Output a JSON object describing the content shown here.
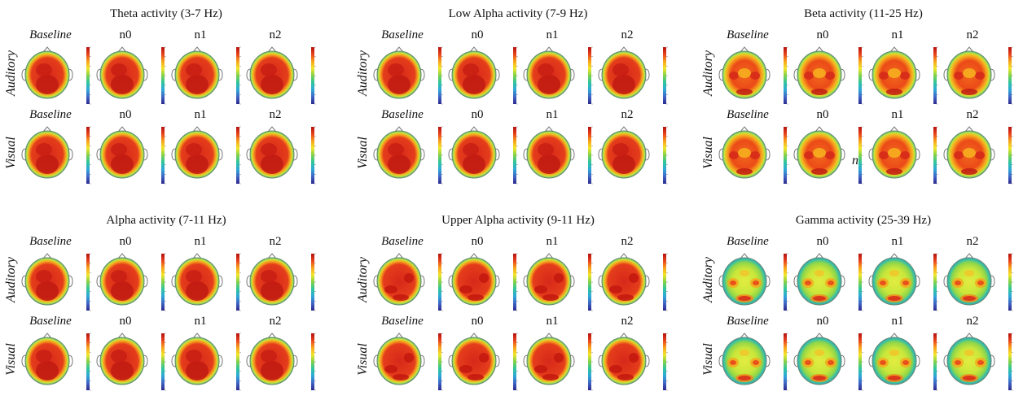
{
  "panels": [
    {
      "title": "Theta activity (3-7 Hz)",
      "style": "uniform",
      "rows": [
        {
          "label": "Auditory",
          "conditions": [
            "Baseline",
            "n0",
            "n1",
            "n2"
          ]
        },
        {
          "label": "Visual",
          "conditions": [
            "Baseline",
            "n0",
            "n1",
            "n2"
          ]
        }
      ]
    },
    {
      "title": "Low Alpha activity (7-9 Hz)",
      "style": "uniform",
      "rows": [
        {
          "label": "Auditory",
          "conditions": [
            "Baseline",
            "n0",
            "n1",
            "n2"
          ]
        },
        {
          "label": "Visual",
          "conditions": [
            "Baseline",
            "n0",
            "n1",
            "n2"
          ]
        }
      ]
    },
    {
      "title": "Beta activity (11-25 Hz)",
      "style": "mid",
      "rows": [
        {
          "label": "Auditory",
          "conditions": [
            "Baseline",
            "n0",
            "n1",
            "n2"
          ]
        },
        {
          "label": "Visual",
          "conditions": [
            "Baseline",
            "n0",
            "n1",
            "n2"
          ]
        }
      ]
    },
    {
      "title": "Alpha activity (7-11 Hz)",
      "style": "uniform",
      "rows": [
        {
          "label": "Auditory",
          "conditions": [
            "Baseline",
            "n0",
            "n1",
            "n2"
          ]
        },
        {
          "label": "Visual",
          "conditions": [
            "Baseline",
            "n0",
            "n1",
            "n2"
          ]
        }
      ]
    },
    {
      "title": "Upper Alpha activity (9-11 Hz)",
      "style": "patchy",
      "rows": [
        {
          "label": "Auditory",
          "conditions": [
            "Baseline",
            "n0",
            "n1",
            "n2"
          ]
        },
        {
          "label": "Visual",
          "conditions": [
            "Baseline",
            "n0",
            "n1",
            "n2"
          ]
        }
      ]
    },
    {
      "title": "Gamma activity (25-39 Hz)",
      "style": "focal",
      "rows": [
        {
          "label": "Auditory",
          "conditions": [
            "Baseline",
            "n0",
            "n1",
            "n2"
          ]
        },
        {
          "label": "Visual",
          "conditions": [
            "Baseline",
            "n0",
            "n1",
            "n2"
          ]
        }
      ]
    }
  ],
  "stray_text": "n",
  "colormap": [
    "#2b2a8c",
    "#3f63c4",
    "#2fa7d8",
    "#2ec4a0",
    "#7fd14a",
    "#f2e52a",
    "#f7a21c",
    "#e8401c",
    "#b3120f"
  ]
}
